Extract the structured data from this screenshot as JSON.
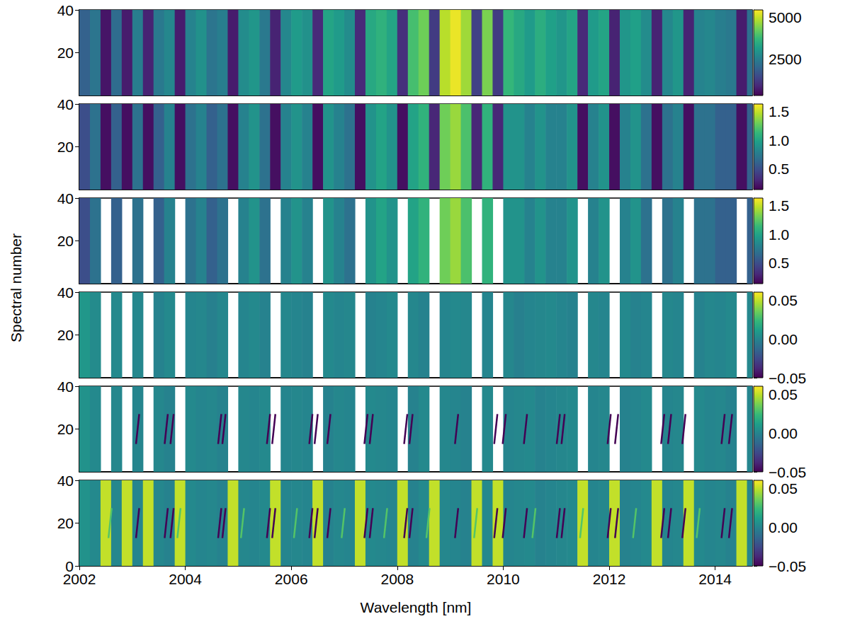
{
  "chart_data": {
    "type": "heatmap",
    "x_label": "Wavelength [nm]",
    "y_label": "Spectral number",
    "color": "viridis",
    "xlim": [
      2002,
      2014.7
    ],
    "xticks": [
      2002,
      2004,
      2006,
      2008,
      2010,
      2012,
      2014
    ],
    "cell_x_edges": [
      2002,
      2002.2,
      2002.4,
      2002.6,
      2002.8,
      2003,
      2003.2,
      2003.4,
      2003.6,
      2003.8,
      2004,
      2004.2,
      2004.4,
      2004.6,
      2004.8,
      2005,
      2005.2,
      2005.4,
      2005.6,
      2005.8,
      2006,
      2006.2,
      2006.4,
      2006.6,
      2006.8,
      2007,
      2007.2,
      2007.4,
      2007.6,
      2007.8,
      2008,
      2008.2,
      2008.4,
      2008.6,
      2008.8,
      2009,
      2009.2,
      2009.4,
      2009.6,
      2009.8,
      2010,
      2010.2,
      2010.4,
      2010.6,
      2010.8,
      2011,
      2011.2,
      2011.4,
      2011.6,
      2011.8,
      2012,
      2012.2,
      2012.4,
      2012.6,
      2012.8,
      2013,
      2013.2,
      2013.4,
      2013.6,
      2013.8,
      2014,
      2014.2,
      2014.4,
      2014.6,
      2014.7
    ],
    "panels": [
      {
        "ylim": [
          0,
          40
        ],
        "yticks": [
          20,
          40
        ],
        "cell_y_edges": [
          0,
          40
        ],
        "colorbar": {
          "range": [
            300,
            5450
          ],
          "ticks": [
            2500,
            5000
          ]
        },
        "cells": [
          [
            1900,
            2300,
            600,
            2100,
            700,
            2500,
            800,
            2400,
            2700,
            700,
            2600,
            2900,
            2300,
            2500,
            700,
            2800,
            3000,
            2400,
            800,
            2700,
            3100,
            2900,
            900,
            3300,
            3100,
            2800,
            900,
            3400,
            3600,
            3300,
            1000,
            3900,
            4300,
            1200,
            4900,
            5300,
            4700,
            1300,
            4400,
            1200,
            3700,
            3400,
            3100,
            3500,
            3200,
            3000,
            3300,
            900,
            3100,
            3300,
            800,
            3000,
            3200,
            2800,
            800,
            2700,
            3000,
            800,
            2600,
            2700,
            2500,
            2400,
            700,
            2200
          ]
        ]
      },
      {
        "ylim": [
          0,
          40
        ],
        "yticks": [
          20,
          40
        ],
        "cell_y_edges": [
          0,
          40
        ],
        "colorbar": {
          "range": [
            0.14,
            1.63
          ],
          "ticks": [
            0.5,
            {
              "value": 1,
              "label": "1.0"
            },
            1.5
          ]
        },
        "cells": [
          [
            0.5,
            0.7,
            0.2,
            0.6,
            0.2,
            0.7,
            0.2,
            0.6,
            0.8,
            0.2,
            0.7,
            0.8,
            0.6,
            0.7,
            0.2,
            0.8,
            0.9,
            0.7,
            0.2,
            0.8,
            0.9,
            0.8,
            0.2,
            0.9,
            0.8,
            0.7,
            0.2,
            0.9,
            1.0,
            0.9,
            0.2,
            1.0,
            1.1,
            0.3,
            1.3,
            1.4,
            1.2,
            0.3,
            1.1,
            0.3,
            0.9,
            0.9,
            0.8,
            0.9,
            0.8,
            0.8,
            0.9,
            0.2,
            0.8,
            0.9,
            0.2,
            0.8,
            0.9,
            0.7,
            0.2,
            0.7,
            0.8,
            0.2,
            0.7,
            0.7,
            0.6,
            0.6,
            0.2,
            0.6
          ]
        ]
      },
      {
        "ylim": [
          0,
          40
        ],
        "yticks": [
          20,
          40
        ],
        "cell_y_edges": [
          0,
          40
        ],
        "colorbar": {
          "range": [
            0.14,
            1.63
          ],
          "ticks": [
            0.5,
            {
              "value": 1,
              "label": "1.0"
            },
            1.5
          ]
        },
        "cells": [
          [
            0.5,
            0.7,
            null,
            0.6,
            null,
            0.7,
            null,
            0.6,
            0.8,
            null,
            0.7,
            0.8,
            0.6,
            0.7,
            null,
            0.8,
            0.9,
            0.7,
            null,
            0.8,
            0.9,
            0.8,
            null,
            0.9,
            0.8,
            0.7,
            null,
            0.9,
            1.0,
            0.9,
            null,
            1.0,
            1.1,
            null,
            1.3,
            1.4,
            1.2,
            null,
            1.1,
            null,
            0.9,
            0.9,
            0.8,
            0.9,
            0.8,
            0.8,
            0.9,
            null,
            0.8,
            0.9,
            null,
            0.8,
            0.9,
            0.7,
            null,
            0.7,
            0.8,
            null,
            0.7,
            0.7,
            0.6,
            0.6,
            null,
            0.6
          ]
        ]
      },
      {
        "ylim": [
          0,
          40
        ],
        "yticks": [
          20,
          40
        ],
        "cell_y_edges": [
          0,
          40
        ],
        "colorbar": {
          "range": [
            -0.05,
            0.06
          ],
          "ticks": [
            {
              "value": -0.05,
              "label": "−0.05"
            },
            {
              "value": 0,
              "label": "0.00"
            },
            0.05
          ]
        },
        "cells": [
          [
            0.008,
            0.003,
            null,
            0.002,
            null,
            0.001,
            null,
            -0.001,
            0.002,
            null,
            0,
            0.001,
            -0.002,
            0.001,
            null,
            0,
            0.002,
            -0.001,
            null,
            0.001,
            0,
            -0.001,
            null,
            0.002,
            0,
            0.001,
            null,
            -0.001,
            0,
            0.002,
            null,
            0.001,
            -0.001,
            null,
            0,
            0.002,
            0.001,
            null,
            0,
            null,
            0.001,
            -0.002,
            0,
            0.001,
            0.002,
            0,
            -0.001,
            null,
            0.001,
            0,
            null,
            0.002,
            -0.001,
            0,
            null,
            0.001,
            0,
            null,
            -0.001,
            0.001,
            0,
            0.002,
            null,
            0.001
          ]
        ]
      },
      {
        "ylim": [
          0,
          40
        ],
        "yticks": [
          20,
          40
        ],
        "cell_y_edges": [
          0,
          40
        ],
        "colorbar": {
          "range": [
            -0.05,
            0.06
          ],
          "ticks": [
            {
              "value": -0.05,
              "label": "−0.05"
            },
            {
              "value": 0,
              "label": "0.00"
            },
            0.05
          ]
        },
        "cells": [
          [
            0.006,
            0.002,
            null,
            0.001,
            null,
            0,
            null,
            0.001,
            -0.001,
            null,
            0.002,
            0,
            0.001,
            -0.001,
            null,
            0.001,
            0,
            0.002,
            null,
            0,
            0.001,
            0,
            null,
            -0.001,
            0.001,
            0,
            null,
            0.002,
            0.001,
            0,
            null,
            -0.001,
            0.002,
            null,
            0.001,
            0,
            -0.001,
            null,
            0.002,
            null,
            0,
            0.001,
            0.002,
            -0.001,
            0,
            0.001,
            0.002,
            null,
            0,
            0.001,
            null,
            -0.001,
            0,
            0.002,
            null,
            0,
            0.001,
            null,
            0.002,
            0,
            0.001,
            -0.001,
            null,
            0
          ]
        ],
        "streaks": [
          {
            "value": -0.05,
            "y": [
              13,
              27
            ],
            "x": [
              [
                2003.07,
                2003.13
              ],
              [
                2003.61,
                2003.67
              ],
              [
                2003.72,
                2003.78
              ],
              [
                2004.62,
                2004.68
              ],
              [
                2004.7,
                2004.76
              ],
              [
                2005.54,
                2005.6
              ],
              [
                2005.64,
                2005.7
              ],
              [
                2006.34,
                2006.4
              ],
              [
                2006.44,
                2006.5
              ],
              [
                2006.68,
                2006.74
              ],
              [
                2007.38,
                2007.44
              ],
              [
                2007.48,
                2007.54
              ],
              [
                2008.13,
                2008.19
              ],
              [
                2008.23,
                2008.29
              ],
              [
                2009.09,
                2009.15
              ],
              [
                2009.83,
                2009.89
              ],
              [
                2009.99,
                2010.05
              ],
              [
                2010.39,
                2010.45
              ],
              [
                2011.01,
                2011.07
              ],
              [
                2011.1,
                2011.16
              ],
              [
                2011.97,
                2012.03
              ],
              [
                2012.11,
                2012.17
              ],
              [
                2012.98,
                2013.04
              ],
              [
                2013.11,
                2013.17
              ],
              [
                2013.38,
                2013.44
              ],
              [
                2014.12,
                2014.18
              ],
              [
                2014.26,
                2014.32
              ]
            ]
          }
        ]
      },
      {
        "ylim": [
          0,
          40
        ],
        "yticks": [
          0,
          20,
          40
        ],
        "cell_y_edges": [
          0,
          40
        ],
        "colorbar": {
          "range": [
            -0.05,
            0.06
          ],
          "ticks": [
            {
              "value": -0.05,
              "label": "−0.05"
            },
            {
              "value": 0,
              "label": "0.00"
            },
            0.05
          ]
        },
        "cells": [
          [
            0.006,
            0.002,
            0.05,
            0.001,
            0.05,
            0,
            0.05,
            0.001,
            -0.001,
            0.05,
            0.002,
            0,
            0.001,
            -0.001,
            0.05,
            0.001,
            0,
            0.002,
            0.05,
            0,
            0.001,
            0,
            0.05,
            -0.001,
            0.001,
            0,
            0.05,
            0.002,
            0.001,
            0,
            0.05,
            -0.001,
            0.002,
            0.05,
            0.001,
            0,
            -0.001,
            0.05,
            0.002,
            0.05,
            0,
            0.001,
            0.002,
            -0.001,
            0,
            0.001,
            0.002,
            0.05,
            0,
            0.001,
            0.05,
            -0.001,
            0,
            0.002,
            0.05,
            0,
            0.001,
            0.05,
            0.002,
            0,
            0.001,
            -0.001,
            0.05,
            0
          ]
        ],
        "streaks": [
          {
            "value": 0.03,
            "y": [
              13,
              27
            ],
            "x": [
              [
                2002.55,
                2002.61
              ],
              [
                2003.85,
                2003.91
              ],
              [
                2005.05,
                2005.11
              ],
              [
                2006.05,
                2006.11
              ],
              [
                2006.95,
                2007.01
              ],
              [
                2007.75,
                2007.81
              ],
              [
                2008.55,
                2008.61
              ],
              [
                2009.45,
                2009.51
              ],
              [
                2010.55,
                2010.61
              ],
              [
                2011.45,
                2011.51
              ],
              [
                2012.45,
                2012.51
              ],
              [
                2013.65,
                2013.71
              ]
            ]
          },
          {
            "value": -0.05,
            "y": [
              13,
              27
            ],
            "x": [
              [
                2003.07,
                2003.13
              ],
              [
                2003.61,
                2003.67
              ],
              [
                2003.72,
                2003.78
              ],
              [
                2004.62,
                2004.68
              ],
              [
                2004.7,
                2004.76
              ],
              [
                2005.54,
                2005.6
              ],
              [
                2005.64,
                2005.7
              ],
              [
                2006.34,
                2006.4
              ],
              [
                2006.44,
                2006.5
              ],
              [
                2006.68,
                2006.74
              ],
              [
                2007.38,
                2007.44
              ],
              [
                2007.48,
                2007.54
              ],
              [
                2008.13,
                2008.19
              ],
              [
                2008.23,
                2008.29
              ],
              [
                2009.09,
                2009.15
              ],
              [
                2009.83,
                2009.89
              ],
              [
                2009.99,
                2010.05
              ],
              [
                2010.39,
                2010.45
              ],
              [
                2011.01,
                2011.07
              ],
              [
                2011.1,
                2011.16
              ],
              [
                2011.97,
                2012.03
              ],
              [
                2012.11,
                2012.17
              ],
              [
                2012.98,
                2013.04
              ],
              [
                2013.11,
                2013.17
              ],
              [
                2013.38,
                2013.44
              ],
              [
                2014.12,
                2014.18
              ],
              [
                2014.26,
                2014.32
              ]
            ]
          }
        ]
      }
    ]
  }
}
